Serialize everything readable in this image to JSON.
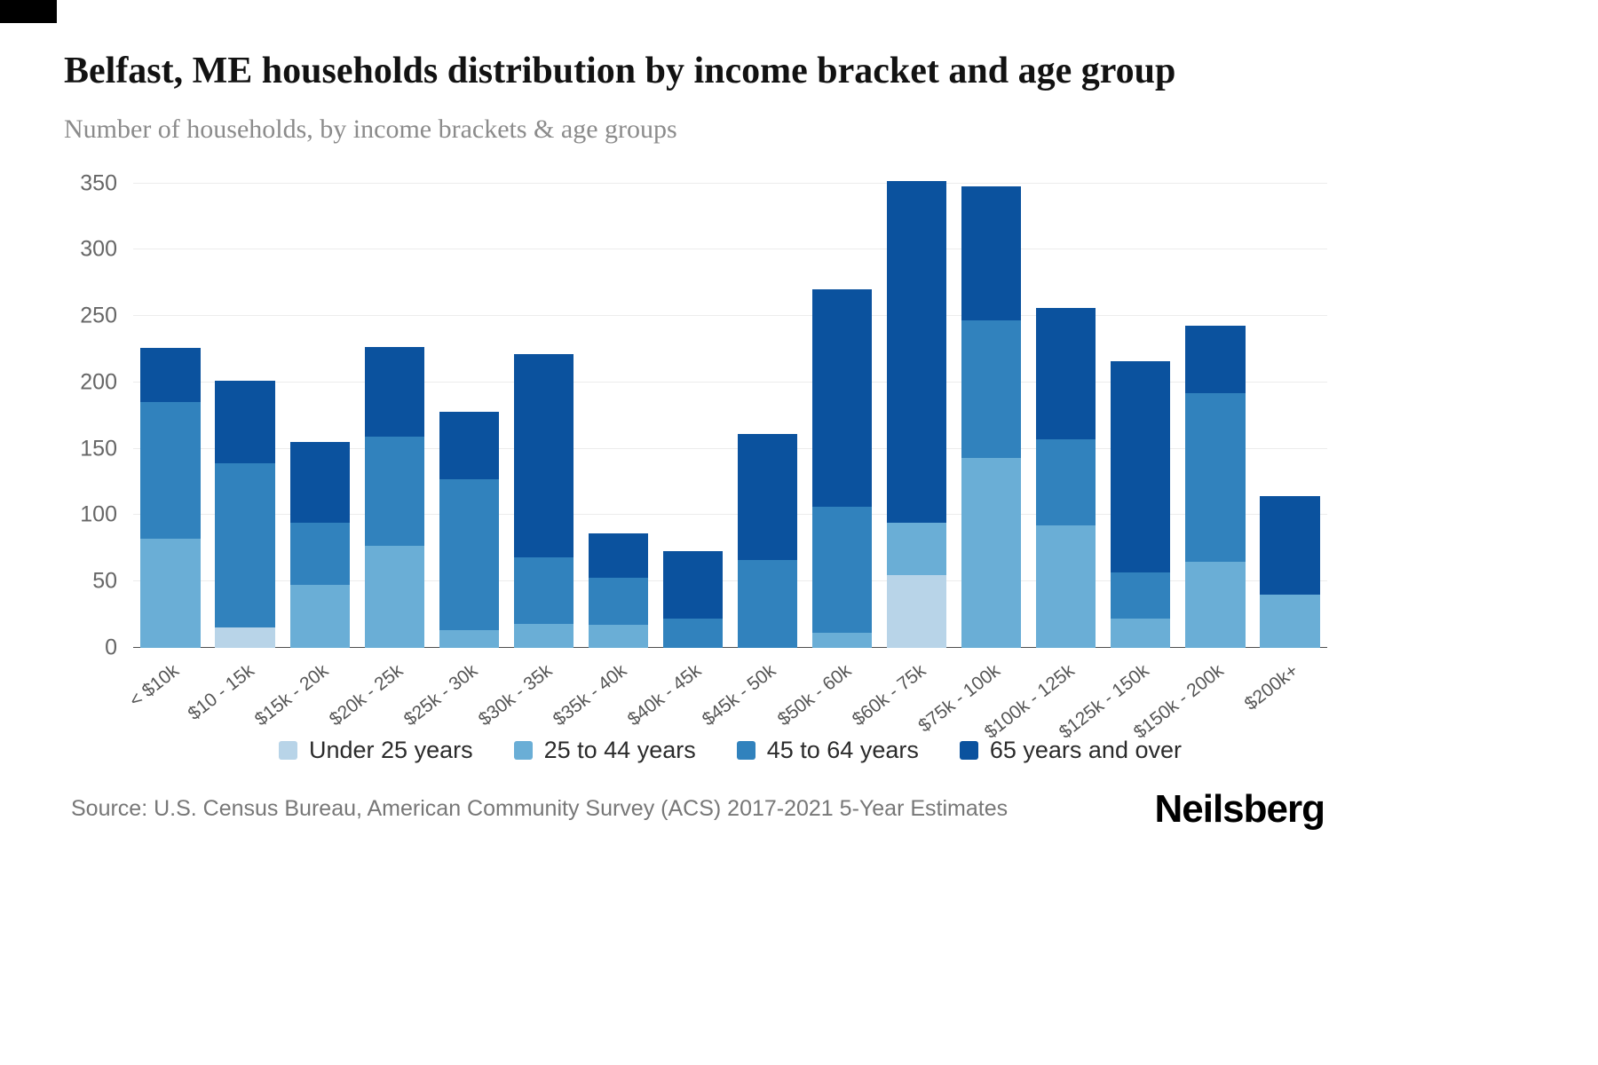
{
  "page": {
    "title": "Belfast, ME households distribution by income bracket and age group",
    "subtitle": "Number of households, by income brackets & age groups",
    "source": "Source: U.S. Census Bureau, American Community Survey (ACS) 2017-2021 5-Year Estimates",
    "brand": "Neilsberg"
  },
  "chart_data": {
    "type": "bar",
    "stacked": true,
    "title": "Belfast, ME households distribution by income bracket and age group",
    "subtitle": "Number of households, by income brackets & age groups",
    "categories": [
      "< $10k",
      "$10 - 15k",
      "$15k - 20k",
      "$20k - 25k",
      "$25k - 30k",
      "$30k - 35k",
      "$35k - 40k",
      "$40k - 45k",
      "$45k - 50k",
      "$50k - 60k",
      "$60k - 75k",
      "$75k - 100k",
      "$100k - 125k",
      "$125k - 150k",
      "$150k - 200k",
      "$200k+"
    ],
    "series": [
      {
        "name": "Under 25 years",
        "color": "#b8d4e8",
        "values": [
          0,
          15,
          0,
          0,
          0,
          0,
          0,
          0,
          0,
          0,
          55,
          0,
          0,
          0,
          0,
          0
        ]
      },
      {
        "name": "25 to 44 years",
        "color": "#6aaed6",
        "values": [
          82,
          0,
          47,
          77,
          13,
          18,
          17,
          0,
          0,
          11,
          39,
          143,
          92,
          22,
          65,
          40
        ]
      },
      {
        "name": "45 to 64 years",
        "color": "#3182bd",
        "values": [
          103,
          124,
          47,
          82,
          114,
          50,
          36,
          22,
          66,
          95,
          0,
          104,
          65,
          35,
          127,
          0
        ]
      },
      {
        "name": "65 years and over",
        "color": "#0b529e",
        "values": [
          41,
          62,
          61,
          68,
          51,
          153,
          33,
          51,
          95,
          164,
          258,
          101,
          99,
          159,
          51,
          74
        ]
      }
    ],
    "totals": [
      226,
      201,
      155,
      227,
      178,
      221,
      86,
      73,
      161,
      270,
      352,
      348,
      256,
      216,
      243,
      114
    ],
    "xlabel": "",
    "ylabel": "",
    "ylim": [
      0,
      350
    ],
    "yticks": [
      0,
      50,
      100,
      150,
      200,
      250,
      300,
      350
    ],
    "grid": true,
    "legend_position": "bottom"
  }
}
